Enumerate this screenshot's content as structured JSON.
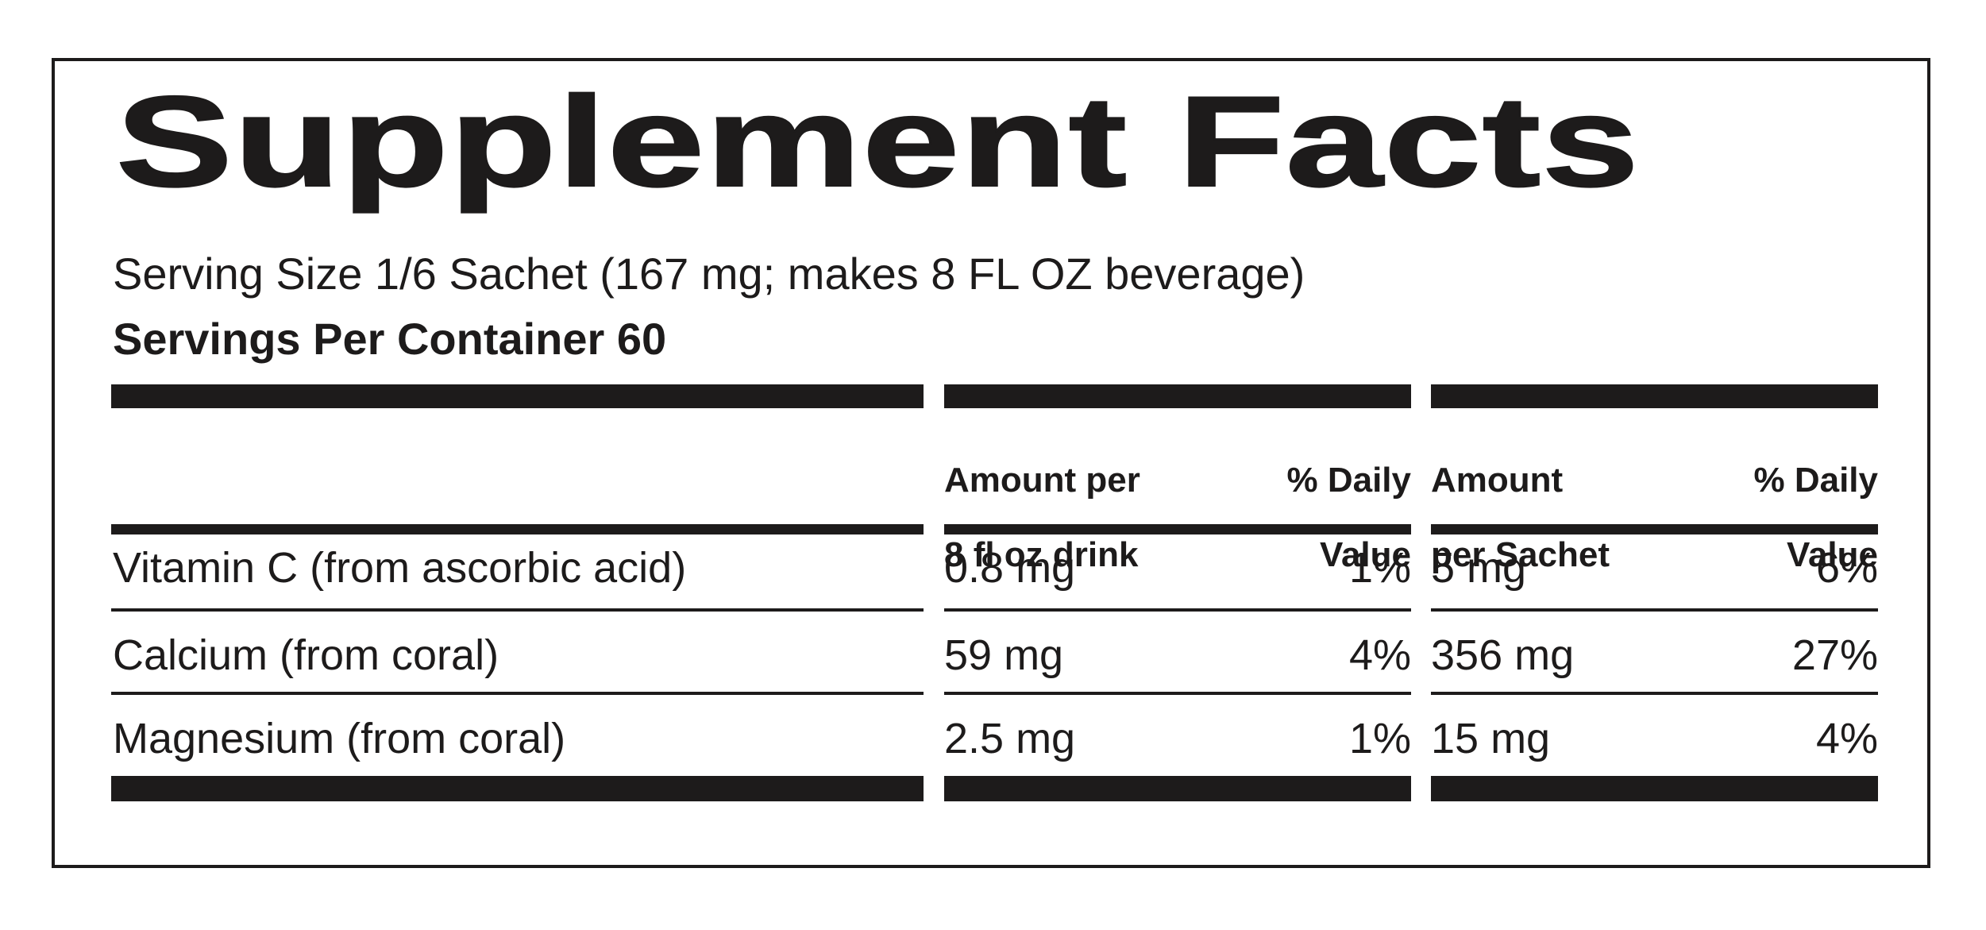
{
  "label": {
    "title": "Supplement Facts",
    "serving_size_line": "Serving Size 1/6 Sachet (167 mg; makes 8 FL OZ beverage)",
    "servings_per_container_line": "Servings Per Container 60"
  },
  "table": {
    "columns": [
      {
        "line1": "Amount per",
        "line2": "8 fl oz drink"
      },
      {
        "line1": "% Daily",
        "line2": "Value"
      },
      {
        "line1": "Amount",
        "line2": "per Sachet"
      },
      {
        "line1": "% Daily",
        "line2": "Value"
      }
    ],
    "rows": [
      {
        "name": "Vitamin C (from ascorbic acid)",
        "amount_per_drink": "0.8 mg",
        "dv_drink": "1%",
        "amount_per_sachet": "5 mg",
        "dv_sachet": "6%"
      },
      {
        "name": "Calcium (from coral)",
        "amount_per_drink": "59 mg",
        "dv_drink": "4%",
        "amount_per_sachet": "356 mg",
        "dv_sachet": "27%"
      },
      {
        "name": "Magnesium (from coral)",
        "amount_per_drink": "2.5 mg",
        "dv_drink": "1%",
        "amount_per_sachet": "15 mg",
        "dv_sachet": "4%"
      }
    ]
  },
  "colors": {
    "ink": "#1d1b1b",
    "background": "#ffffff"
  }
}
